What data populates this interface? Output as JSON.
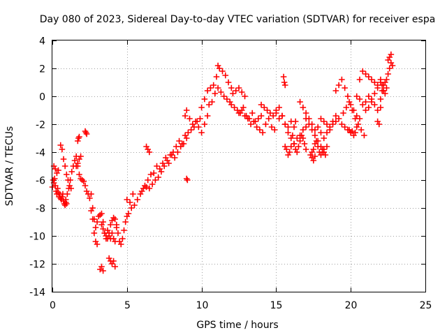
{
  "chart_data": {
    "type": "scatter",
    "title": "Day 080 of 2023, Sidereal Day-to-day VTEC variation (SDTVAR) for receiver espa",
    "xlabel": "GPS time / hours",
    "ylabel": "SDTVAR / TECUs",
    "xlim": [
      0,
      25
    ],
    "ylim": [
      -14,
      4
    ],
    "xticks": [
      0,
      5,
      10,
      15,
      20,
      25
    ],
    "xtick_labels": [
      "0",
      "5",
      "10",
      "15",
      "20",
      "25"
    ],
    "yticks": [
      -14,
      -12,
      -10,
      -8,
      -6,
      -4,
      -2,
      0,
      2,
      4
    ],
    "ytick_labels": [
      "-14",
      "-12",
      "-10",
      "-8",
      "-6",
      "-4",
      "-2",
      "0",
      "2",
      "4"
    ],
    "grid": true,
    "marker": "+",
    "color": "#ff0000",
    "series": [
      {
        "name": "SDTVAR",
        "x": [
          0.0,
          0.05,
          0.1,
          0.15,
          0.2,
          0.25,
          0.3,
          0.35,
          0.4,
          0.45,
          0.5,
          0.55,
          0.6,
          0.65,
          0.7,
          0.75,
          0.8,
          0.85,
          0.9,
          0.95,
          0.1,
          0.2,
          0.3,
          0.4,
          0.55,
          0.65,
          0.75,
          0.85,
          0.95,
          1.05,
          1.15,
          1.25,
          0.9,
          1.0,
          1.1,
          1.2,
          1.3,
          1.4,
          1.5,
          1.6,
          1.7,
          1.8,
          1.9,
          2.0,
          2.1,
          2.2,
          2.3,
          1.6,
          1.7,
          1.8,
          1.9,
          1.7,
          1.75,
          1.8,
          2.2,
          2.25,
          2.3,
          2.4,
          2.5,
          2.6,
          2.7,
          2.8,
          2.9,
          3.0,
          3.1,
          3.2,
          3.3,
          3.4,
          3.5,
          3.6,
          3.7,
          3.8,
          3.9,
          4.0,
          4.1,
          4.2,
          2.6,
          2.7,
          2.8,
          2.9,
          3.0,
          3.3,
          3.4,
          3.5,
          3.6,
          3.7,
          3.8,
          3.9,
          4.0,
          4.1,
          4.2,
          4.3,
          3.2,
          3.3,
          3.4,
          3.8,
          3.9,
          4.0,
          4.1,
          4.2,
          4.3,
          4.4,
          4.5,
          4.6,
          4.7,
          4.8,
          4.9,
          5.0,
          5.1,
          5.3,
          5.5,
          5.7,
          5.9,
          6.1,
          6.3,
          6.5,
          6.7,
          6.9,
          7.1,
          7.3,
          7.5,
          7.7,
          5.0,
          5.2,
          5.4,
          6.0,
          6.2,
          6.4,
          6.6,
          6.8,
          7.0,
          7.2,
          7.4,
          7.6,
          6.3,
          6.4,
          6.5,
          7.8,
          8.0,
          8.2,
          8.4,
          8.6,
          8.8,
          9.0,
          7.9,
          8.1,
          8.3,
          8.5,
          8.7,
          8.9,
          9.1,
          9.3,
          9.5,
          9.7,
          9.9,
          8.9,
          9.0,
          9.2,
          9.4,
          9.6,
          9.8,
          10.0,
          10.2,
          10.4,
          9.0,
          9.05,
          10.0,
          10.2,
          10.4,
          10.6,
          10.8,
          11.0,
          11.1,
          11.2,
          11.4,
          11.6,
          11.8,
          12.0,
          10.5,
          10.7,
          10.9,
          11.1,
          11.3,
          11.5,
          11.7,
          11.9,
          12.1,
          12.3,
          12.5,
          12.7,
          12.9,
          12.0,
          12.2,
          12.4,
          12.6,
          12.8,
          13.0,
          13.2,
          13.4,
          13.6,
          13.8,
          14.0,
          12.5,
          12.7,
          12.9,
          13.1,
          13.3,
          13.5,
          13.7,
          13.9,
          14.1,
          14.3,
          14.5,
          14.7,
          14.9,
          14.0,
          14.2,
          14.4,
          14.6,
          14.8,
          15.0,
          15.2,
          15.4,
          15.6,
          15.8,
          16.0,
          15.0,
          15.2,
          15.4,
          15.6,
          15.8,
          16.0,
          16.2,
          16.4,
          16.6,
          16.8,
          17.0,
          15.5,
          15.55,
          15.6,
          15.6,
          15.7,
          15.8,
          15.9,
          16.0,
          16.1,
          16.2,
          16.3,
          16.2,
          16.3,
          16.4,
          16.5,
          16.6,
          16.7,
          16.8,
          16.9,
          17.0,
          16.6,
          16.8,
          17.0,
          17.2,
          17.4,
          17.6,
          17.8,
          18.0,
          17.0,
          17.2,
          17.4,
          17.6,
          17.8,
          18.0,
          18.2,
          18.4,
          18.6,
          18.8,
          19.0,
          17.3,
          17.4,
          17.5,
          17.6,
          17.4,
          17.5,
          17.6,
          17.7,
          17.8,
          17.9,
          18.0,
          18.1,
          18.2,
          18.0,
          18.2,
          18.4,
          18.6,
          18.8,
          19.0,
          19.2,
          19.4,
          19.6,
          19.8,
          20.0,
          18.1,
          18.2,
          18.3,
          18.4,
          19.0,
          19.2,
          19.4,
          19.6,
          19.8,
          20.0,
          20.2,
          20.4,
          20.6,
          19.5,
          19.7,
          19.9,
          20.1,
          20.3,
          20.5,
          20.7,
          20.9,
          19.9,
          20.0,
          20.1,
          20.2,
          20.3,
          20.4,
          20.4,
          20.6,
          20.8,
          21.0,
          21.2,
          21.4,
          21.6,
          21.8,
          22.0,
          20.6,
          20.8,
          21.0,
          21.2,
          21.4,
          21.6,
          21.8,
          22.0,
          21.0,
          21.2,
          21.4,
          21.6,
          21.8,
          22.0,
          22.2,
          21.8,
          21.9,
          22.0,
          22.1,
          22.2,
          22.3,
          22.4,
          22.5,
          22.6,
          22.7,
          22.8,
          22.1,
          22.2,
          22.3,
          22.4,
          22.5,
          22.6,
          22.7
        ],
        "y": [
          -6.5,
          -6.0,
          -6.2,
          -5.9,
          -6.4,
          -6.8,
          -7.0,
          -6.6,
          -6.9,
          -7.2,
          -7.0,
          -7.3,
          -7.4,
          -7.2,
          -7.0,
          -7.5,
          -7.7,
          -7.8,
          -7.6,
          -7.7,
          -5.0,
          -5.2,
          -5.5,
          -5.3,
          -3.5,
          -3.8,
          -4.5,
          -5.0,
          -5.6,
          -6.0,
          -6.4,
          -6.6,
          -7.4,
          -7.0,
          -6.6,
          -6.0,
          -5.4,
          -5.0,
          -4.6,
          -4.3,
          -5.0,
          -5.6,
          -5.9,
          -6.0,
          -6.1,
          -6.4,
          -6.8,
          -5.0,
          -4.8,
          -4.5,
          -4.3,
          -3.2,
          -3.0,
          -2.9,
          -2.5,
          -2.6,
          -2.7,
          -7.0,
          -7.3,
          -7.0,
          -8.0,
          -8.8,
          -9.4,
          -9.0,
          -8.6,
          -8.5,
          -8.4,
          -9.0,
          -9.8,
          -10.2,
          -9.6,
          -10.0,
          -10.2,
          -9.8,
          -10.2,
          -10.4,
          -8.2,
          -8.8,
          -9.8,
          -10.4,
          -10.6,
          -9.2,
          -9.5,
          -9.8,
          -10.0,
          -10.2,
          -9.8,
          -9.2,
          -8.9,
          -8.7,
          -8.8,
          -9.2,
          -12.4,
          -12.2,
          -12.5,
          -11.6,
          -11.8,
          -12.0,
          -11.8,
          -12.2,
          -9.4,
          -9.8,
          -10.4,
          -10.6,
          -10.2,
          -9.6,
          -9.0,
          -8.6,
          -8.4,
          -8.0,
          -7.8,
          -7.4,
          -7.0,
          -6.6,
          -6.5,
          -6.6,
          -6.3,
          -6.0,
          -5.8,
          -5.4,
          -5.0,
          -4.6,
          -7.4,
          -7.6,
          -7.0,
          -6.8,
          -6.4,
          -6.0,
          -5.6,
          -5.5,
          -5.0,
          -5.2,
          -4.8,
          -4.4,
          -3.6,
          -3.8,
          -4.0,
          -4.8,
          -4.2,
          -4.4,
          -4.0,
          -3.6,
          -3.4,
          -3.0,
          -4.2,
          -4.0,
          -3.6,
          -3.2,
          -3.4,
          -2.8,
          -2.6,
          -2.4,
          -2.2,
          -1.8,
          -1.6,
          -1.4,
          -1.0,
          -1.6,
          -2.0,
          -1.8,
          -2.2,
          -2.6,
          -2.0,
          -1.4,
          -5.9,
          -6.0,
          -0.8,
          -0.2,
          0.4,
          0.6,
          0.8,
          1.4,
          2.2,
          2.0,
          1.8,
          1.5,
          1.0,
          0.6,
          -0.6,
          -0.4,
          0.2,
          0.6,
          0.3,
          0.0,
          -0.2,
          -0.4,
          0.2,
          0.4,
          0.6,
          0.3,
          0.0,
          -0.6,
          -0.8,
          -1.0,
          -1.2,
          -0.8,
          -1.4,
          -1.6,
          -1.2,
          -1.8,
          -1.6,
          -1.4,
          -1.2,
          -1.0,
          -1.4,
          -1.6,
          -2.0,
          -1.8,
          -2.2,
          -2.4,
          -2.6,
          -2.0,
          -1.6,
          -2.2,
          -2.4,
          -0.6,
          -0.8,
          -1.0,
          -1.2,
          -1.4,
          -1.0,
          -1.6,
          -1.4,
          -2.0,
          -2.2,
          -1.8,
          -1.2,
          -0.8,
          -1.4,
          -2.0,
          -2.6,
          -3.0,
          -3.4,
          -3.0,
          -2.8,
          -2.4,
          -2.2,
          1.4,
          1.0,
          0.8,
          -3.6,
          -3.8,
          -4.2,
          -4.0,
          -3.6,
          -2.8,
          -2.2,
          -1.8,
          -3.4,
          -3.8,
          -4.0,
          -3.6,
          -3.2,
          -2.8,
          -3.0,
          -3.4,
          -3.8,
          -0.4,
          -0.8,
          -1.2,
          -1.6,
          -2.0,
          -2.4,
          -2.2,
          -2.6,
          -1.6,
          -2.0,
          -2.4,
          -2.8,
          -3.2,
          -3.6,
          -3.0,
          -2.6,
          -2.4,
          -2.0,
          -1.8,
          -4.2,
          -4.4,
          -4.6,
          -4.3,
          -4.0,
          -3.8,
          -3.4,
          -3.2,
          -3.6,
          -4.0,
          -4.2,
          -4.0,
          -3.8,
          -1.6,
          -1.8,
          -2.0,
          -2.2,
          -1.8,
          -1.4,
          -1.6,
          -2.0,
          -2.2,
          -2.4,
          -2.6,
          -3.8,
          -4.0,
          -4.2,
          -3.6,
          0.4,
          0.8,
          1.2,
          0.6,
          0.0,
          -0.6,
          -1.0,
          -1.4,
          -1.6,
          -1.2,
          -0.8,
          -0.4,
          -1.0,
          -1.6,
          -2.0,
          -2.4,
          -2.8,
          -2.4,
          -2.6,
          -2.5,
          -2.8,
          -2.6,
          -2.2,
          0.0,
          1.2,
          1.8,
          1.6,
          1.4,
          1.2,
          1.0,
          0.8,
          1.2,
          -0.2,
          -0.6,
          -1.0,
          -0.8,
          -0.4,
          -0.6,
          -1.0,
          -0.8,
          -0.4,
          0.0,
          -0.2,
          0.2,
          0.6,
          1.0,
          0.4,
          -1.8,
          -2.0,
          -0.2,
          0.4,
          0.8,
          1.0,
          1.2,
          1.6,
          2.0,
          2.4,
          2.2,
          0.8,
          0.4,
          0.2,
          0.6,
          2.6,
          2.8,
          3.0
        ]
      }
    ]
  }
}
